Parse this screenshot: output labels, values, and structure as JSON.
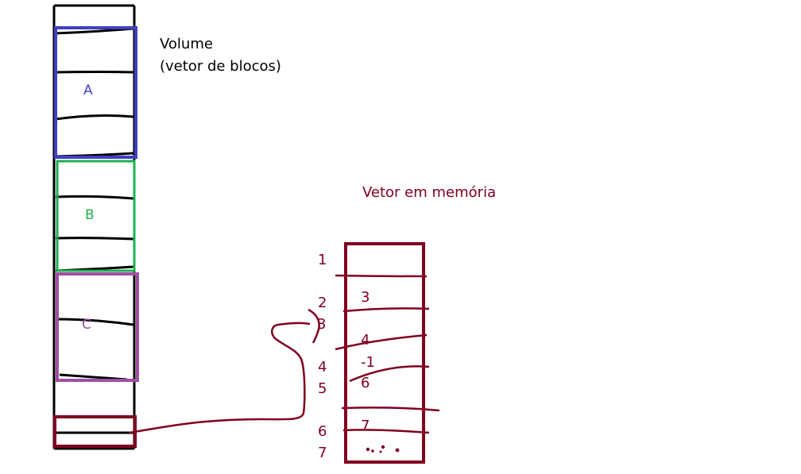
{
  "volume": {
    "caption_line1": "Volume",
    "caption_line2": "(vetor de blocos)",
    "groups": [
      {
        "label": "A",
        "color": "#4040c0"
      },
      {
        "label": "B",
        "color": "#20b050"
      },
      {
        "label": "C",
        "color": "#a050a0"
      }
    ],
    "outline_color": "#000000",
    "pointer_block_color": "#800020"
  },
  "memory": {
    "title": "Vetor em memória",
    "color": "#800020",
    "index_labels": [
      "1",
      "2",
      "3",
      "4",
      "5",
      "6",
      "7"
    ],
    "cell_values": [
      "3",
      "4",
      "-1",
      "6",
      "7"
    ]
  }
}
